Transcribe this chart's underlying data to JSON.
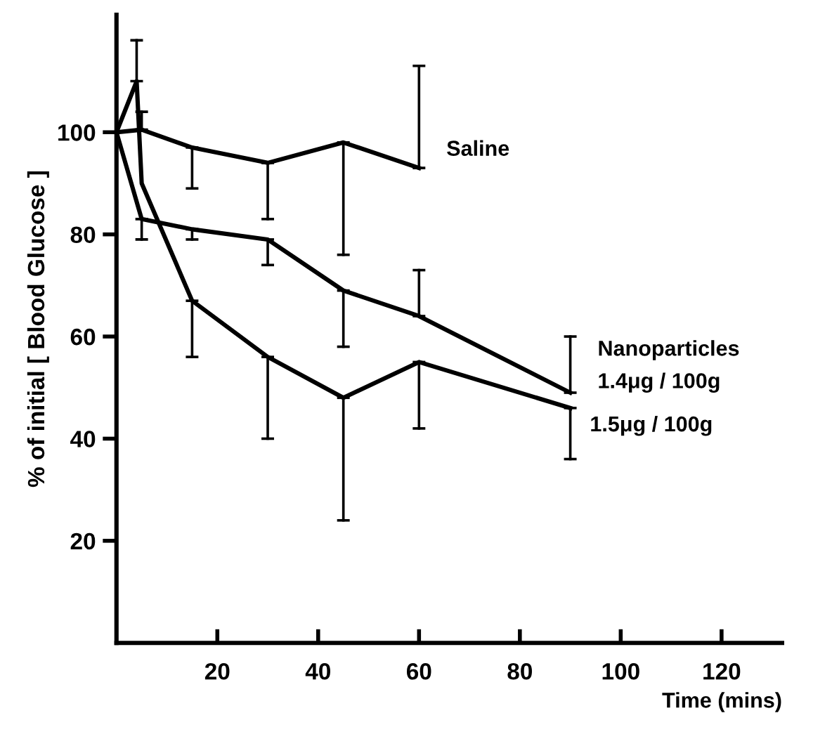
{
  "chart_data": {
    "type": "line",
    "xlabel": "Time (mins)",
    "ylabel": "% of initial [ Blood Glucose ]",
    "xlim": [
      0,
      132
    ],
    "ylim": [
      0,
      123
    ],
    "xticks": [
      20,
      40,
      60,
      80,
      100,
      120
    ],
    "yticks": [
      20,
      40,
      60,
      80,
      100
    ],
    "grid": false,
    "legend": false,
    "marker": "none",
    "line_style": "solid",
    "series": [
      {
        "name": "Saline",
        "color": "#000000",
        "x": [
          0,
          5,
          15,
          30,
          45,
          60
        ],
        "values": [
          100,
          100.5,
          97,
          94,
          98,
          93
        ],
        "errors": [
          null,
          [
            100.5,
            104
          ],
          [
            89,
            97
          ],
          [
            83,
            94
          ],
          [
            76,
            98
          ],
          [
            93,
            113
          ]
        ]
      },
      {
        "name": "Nanoparticles\n1.4μg / 100g",
        "color": "#000000",
        "x": [
          0,
          5,
          15,
          30,
          45,
          60,
          90
        ],
        "values": [
          100,
          83,
          81,
          79,
          69,
          64,
          49
        ],
        "errors": [
          null,
          [
            79,
            83
          ],
          [
            79,
            81
          ],
          [
            74,
            79
          ],
          [
            58,
            69
          ],
          [
            64,
            73
          ],
          [
            49,
            60
          ]
        ]
      },
      {
        "name": "1.5μg / 100g",
        "color": "#000000",
        "x": [
          0,
          4,
          5,
          15,
          30,
          45,
          60,
          90
        ],
        "values": [
          100,
          110,
          90,
          67,
          56,
          48,
          55,
          46
        ],
        "errors": [
          null,
          [
            110,
            118
          ],
          null,
          [
            56,
            67
          ],
          [
            40,
            56
          ],
          [
            24,
            48
          ],
          [
            42,
            55
          ],
          [
            36,
            46
          ]
        ]
      }
    ]
  }
}
